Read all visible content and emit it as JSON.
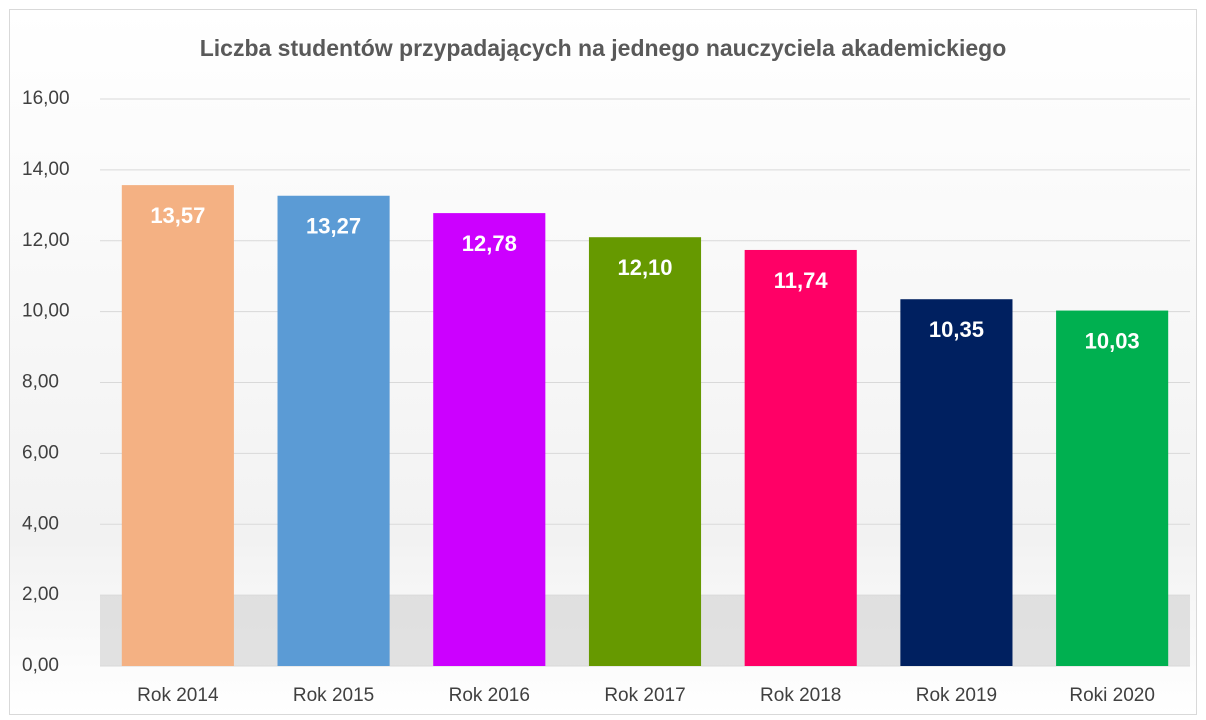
{
  "chart_data": {
    "type": "bar",
    "title": "Liczba studentów przypadających na jednego nauczyciela akademickiego",
    "categories": [
      "Rok 2014",
      "Rok 2015",
      "Rok 2016",
      "Rok 2017",
      "Rok 2018",
      "Rok 2019",
      "Roki 2020"
    ],
    "values": [
      13.57,
      13.27,
      12.78,
      12.1,
      11.74,
      10.35,
      10.03
    ],
    "value_labels": [
      "13,57",
      "13,27",
      "12,78",
      "12,10",
      "11,74",
      "10,35",
      "10,03"
    ],
    "colors": [
      "#f4b183",
      "#5b9bd5",
      "#cc00ff",
      "#669900",
      "#ff0066",
      "#002060",
      "#00b050"
    ],
    "ylim": [
      0,
      16
    ],
    "yticks": [
      {
        "value": 0,
        "label": "0,00"
      },
      {
        "value": 2,
        "label": "2,00"
      },
      {
        "value": 4,
        "label": "4,00"
      },
      {
        "value": 6,
        "label": "6,00"
      },
      {
        "value": 8,
        "label": "8,00"
      },
      {
        "value": 10,
        "label": "10,00"
      },
      {
        "value": 12,
        "label": "12,00"
      },
      {
        "value": 14,
        "label": "14,00"
      },
      {
        "value": 16,
        "label": "16,00"
      }
    ],
    "grid": true
  }
}
